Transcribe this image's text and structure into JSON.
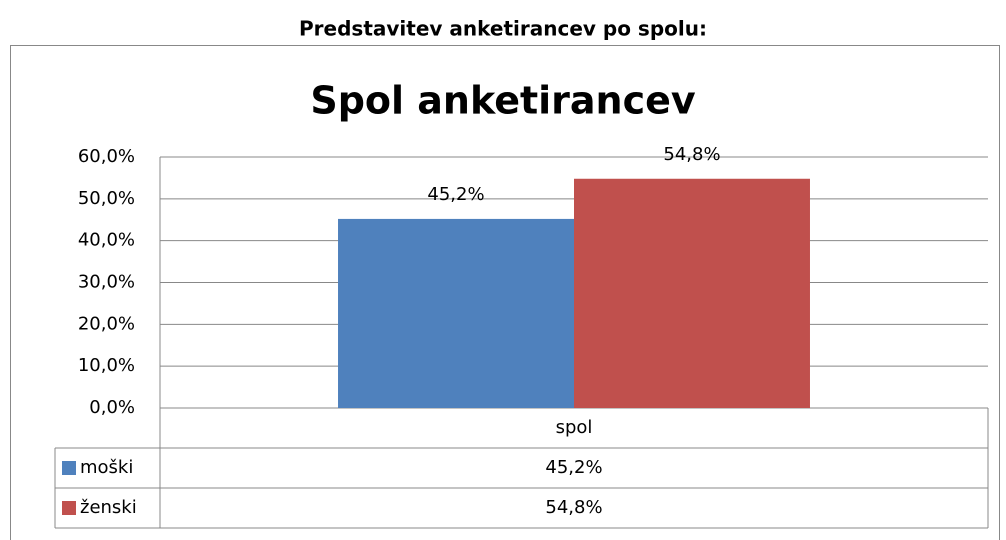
{
  "heading": "Predstavitev anketirancev po spolu:",
  "chart_data": {
    "type": "bar",
    "title": "Spol anketirancev",
    "categories": [
      "spol"
    ],
    "series": [
      {
        "name": "moški",
        "color": "#4f81bd",
        "values": [
          45.2
        ],
        "value_labels": [
          "45,2%"
        ]
      },
      {
        "name": "ženski",
        "color": "#c0504d",
        "values": [
          54.8
        ],
        "value_labels": [
          "54,8%"
        ]
      }
    ],
    "ylim": [
      0,
      60
    ],
    "yticks": [
      {
        "value": 0,
        "label": "0,0%"
      },
      {
        "value": 10,
        "label": "10,0%"
      },
      {
        "value": 20,
        "label": "20,0%"
      },
      {
        "value": 30,
        "label": "30,0%"
      },
      {
        "value": 40,
        "label": "40,0%"
      },
      {
        "value": 50,
        "label": "50,0%"
      },
      {
        "value": 60,
        "label": "60,0%"
      }
    ],
    "grid": true,
    "data_table": true
  }
}
